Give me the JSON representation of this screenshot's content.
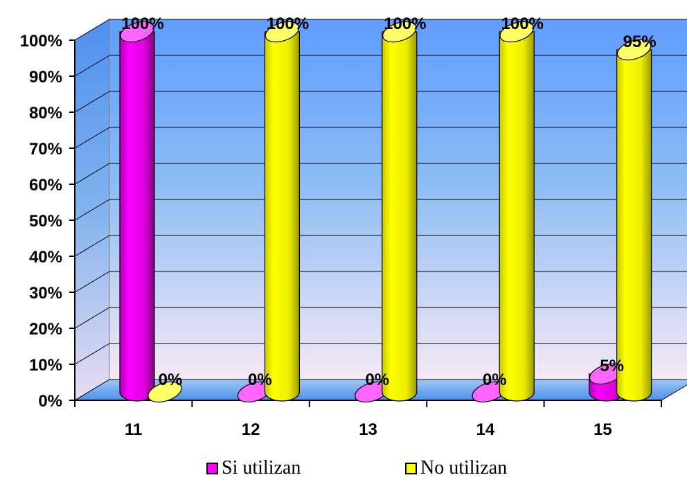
{
  "chart_data": {
    "type": "bar",
    "categories": [
      "11",
      "12",
      "13",
      "14",
      "15"
    ],
    "series": [
      {
        "name": "Si utilizan",
        "values": [
          100,
          0,
          0,
          0,
          5
        ],
        "labels": [
          "100%",
          "0%",
          "0%",
          "0%",
          "5%"
        ],
        "color": "#ff00ff"
      },
      {
        "name": "No utilizan",
        "values": [
          0,
          100,
          100,
          100,
          95
        ],
        "labels": [
          "0%",
          "100%",
          "100%",
          "100%",
          "95%"
        ],
        "color": "#ffff00"
      }
    ],
    "y_ticks": [
      "0%",
      "10%",
      "20%",
      "30%",
      "40%",
      "50%",
      "60%",
      "70%",
      "80%",
      "90%",
      "100%"
    ],
    "ylim": [
      0,
      100
    ],
    "grid": true,
    "legend_position": "bottom",
    "wall_color_top": "#5f9dff",
    "wall_color_bottom": "#f6e8f6"
  }
}
